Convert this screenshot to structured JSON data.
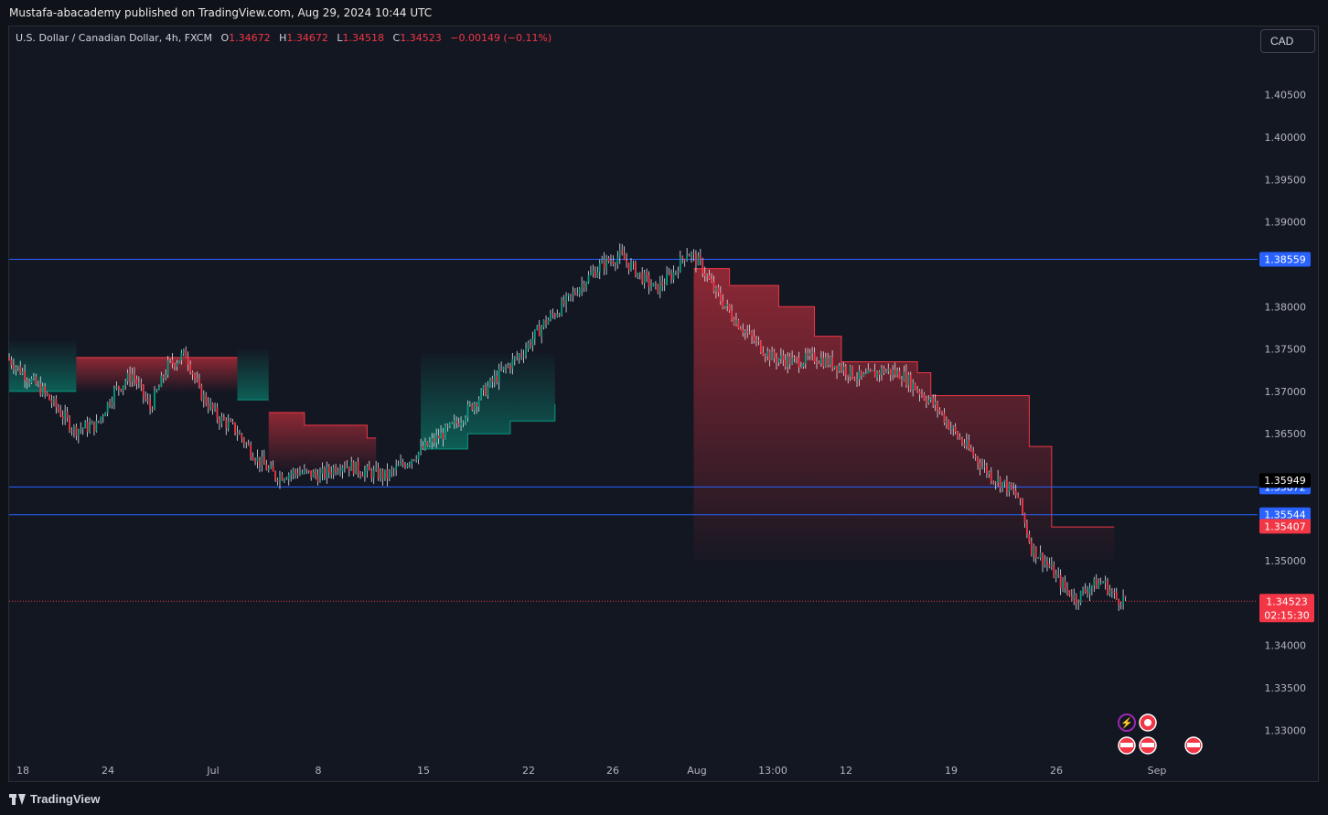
{
  "header": {
    "publisher": "Mustafa-abacademy published on TradingView.com, Aug 29, 2024 10:44 UTC"
  },
  "legend": {
    "symbol": "U.S. Dollar / Canadian Dollar, 4h, FXCM",
    "o_label": "O",
    "o_value": "1.34672",
    "h_label": "H",
    "h_value": "1.34672",
    "l_label": "L",
    "l_value": "1.34518",
    "c_label": "C",
    "c_value": "1.34523",
    "change": "−0.00149 (−0.11%)"
  },
  "currency_button": "CAD",
  "footer": {
    "brand": "TradingView"
  },
  "colors": {
    "up": "#089981",
    "down": "#f23645",
    "hline": "#2962ff",
    "bg": "#131722"
  },
  "chart_data": {
    "type": "candlestick",
    "yaxis": {
      "ticks": [
        "1.40500",
        "1.40000",
        "1.39500",
        "1.39000",
        "1.38000",
        "1.37500",
        "1.37000",
        "1.36500",
        "1.35000",
        "1.34000",
        "1.33500",
        "1.33000"
      ]
    },
    "xaxis": {
      "ticks": [
        "18",
        "24",
        "Jul",
        "8",
        "15",
        "22",
        "26",
        "Aug",
        "13:00",
        "12",
        "19",
        "26",
        "Sep"
      ]
    },
    "horizontal_lines": [
      {
        "value": 1.38559,
        "label": "1.38559"
      },
      {
        "value": 1.35872,
        "label": "1.35872"
      },
      {
        "value": 1.35544,
        "label": "1.35544"
      }
    ],
    "price_tags": [
      {
        "value": 1.35949,
        "label": "1.35949",
        "kind": "dark"
      },
      {
        "value": 1.35407,
        "label": "1.35407",
        "kind": "red"
      }
    ],
    "last_price": {
      "value": 1.34523,
      "label": "1.34523",
      "countdown": "02:15:30"
    },
    "price_path": [
      [
        0,
        1.374
      ],
      [
        8,
        1.372
      ],
      [
        16,
        1.37
      ],
      [
        24,
        1.3675
      ],
      [
        30,
        1.3655
      ],
      [
        40,
        1.366
      ],
      [
        48,
        1.37
      ],
      [
        56,
        1.372
      ],
      [
        64,
        1.368
      ],
      [
        72,
        1.373
      ],
      [
        80,
        1.3745
      ],
      [
        86,
        1.37
      ],
      [
        94,
        1.367
      ],
      [
        102,
        1.3655
      ],
      [
        112,
        1.362
      ],
      [
        120,
        1.36
      ],
      [
        130,
        1.3605
      ],
      [
        140,
        1.36
      ],
      [
        150,
        1.3615
      ],
      [
        160,
        1.3605
      ],
      [
        170,
        1.36
      ],
      [
        180,
        1.362
      ],
      [
        190,
        1.364
      ],
      [
        200,
        1.366
      ],
      [
        210,
        1.369
      ],
      [
        220,
        1.372
      ],
      [
        230,
        1.3745
      ],
      [
        240,
        1.378
      ],
      [
        250,
        1.3805
      ],
      [
        258,
        1.383
      ],
      [
        266,
        1.385
      ],
      [
        274,
        1.386
      ],
      [
        282,
        1.384
      ],
      [
        290,
        1.382
      ],
      [
        298,
        1.384
      ],
      [
        304,
        1.3865
      ],
      [
        310,
        1.385
      ],
      [
        316,
        1.382
      ],
      [
        324,
        1.379
      ],
      [
        332,
        1.3765
      ],
      [
        342,
        1.374
      ],
      [
        352,
        1.3735
      ],
      [
        362,
        1.374
      ],
      [
        372,
        1.373
      ],
      [
        382,
        1.3715
      ],
      [
        392,
        1.3725
      ],
      [
        400,
        1.372
      ],
      [
        408,
        1.37
      ],
      [
        416,
        1.368
      ],
      [
        424,
        1.365
      ],
      [
        432,
        1.3625
      ],
      [
        440,
        1.36
      ],
      [
        446,
        1.359
      ],
      [
        452,
        1.3575
      ],
      [
        458,
        1.3515
      ],
      [
        464,
        1.35
      ],
      [
        472,
        1.347
      ],
      [
        478,
        1.3455
      ],
      [
        484,
        1.347
      ],
      [
        490,
        1.3475
      ],
      [
        496,
        1.3455
      ]
    ],
    "supertrend_segments": [
      {
        "trend": "up",
        "steps": [
          [
            0,
            1.37
          ],
          [
            30,
            1.37
          ]
        ]
      },
      {
        "trend": "down",
        "steps": [
          [
            30,
            1.374
          ],
          [
            102,
            1.374
          ]
        ]
      },
      {
        "trend": "up",
        "steps": [
          [
            102,
            1.369
          ],
          [
            116,
            1.369
          ]
        ]
      },
      {
        "trend": "down",
        "steps": [
          [
            116,
            1.3675
          ],
          [
            132,
            1.366
          ],
          [
            156,
            1.366
          ],
          [
            160,
            1.3645
          ],
          [
            164,
            1.3645
          ]
        ]
      },
      {
        "trend": "up",
        "steps": [
          [
            184,
            1.3632
          ],
          [
            200,
            1.3632
          ],
          [
            205,
            1.365
          ],
          [
            224,
            1.3665
          ],
          [
            244,
            1.3685
          ]
        ]
      },
      {
        "trend": "down",
        "steps": [
          [
            306,
            1.3845
          ],
          [
            320,
            1.3845
          ],
          [
            322,
            1.3825
          ],
          [
            342,
            1.3825
          ],
          [
            344,
            1.38
          ],
          [
            356,
            1.38
          ],
          [
            360,
            1.3765
          ],
          [
            372,
            1.3735
          ],
          [
            384,
            1.3735
          ],
          [
            406,
            1.3722
          ],
          [
            412,
            1.3695
          ],
          [
            450,
            1.3695
          ],
          [
            456,
            1.3635
          ],
          [
            462,
            1.3635
          ],
          [
            466,
            1.354
          ],
          [
            494,
            1.354
          ]
        ]
      }
    ],
    "ylim": [
      1.3268,
      1.4135
    ]
  }
}
